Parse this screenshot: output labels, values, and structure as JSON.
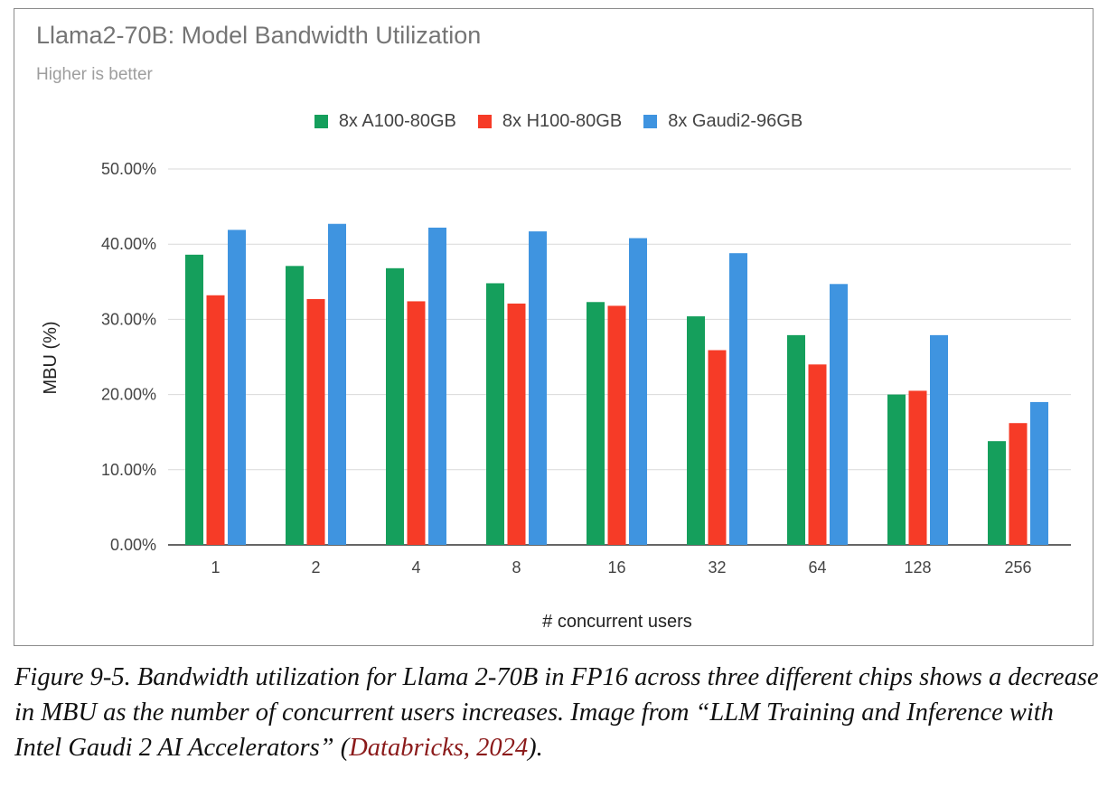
{
  "chart_data": {
    "type": "bar",
    "title": "Llama2-70B: Model Bandwidth Utilization",
    "subtitle": "Higher is better",
    "xlabel": "# concurrent users",
    "ylabel": "MBU (%)",
    "categories": [
      "1",
      "2",
      "4",
      "8",
      "16",
      "32",
      "64",
      "128",
      "256"
    ],
    "ylim": [
      0,
      50
    ],
    "yticks": [
      0,
      10,
      20,
      30,
      40,
      50
    ],
    "ytick_labels": [
      "0.00%",
      "10.00%",
      "20.00%",
      "30.00%",
      "40.00%",
      "50.00%"
    ],
    "grid": true,
    "legend_position": "top",
    "series": [
      {
        "name": "8x A100-80GB",
        "color": "#159f5c",
        "values": [
          38.6,
          37.1,
          36.8,
          34.8,
          32.3,
          30.4,
          27.9,
          20.0,
          13.8
        ]
      },
      {
        "name": "8x H100-80GB",
        "color": "#f63b27",
        "values": [
          33.2,
          32.7,
          32.4,
          32.1,
          31.8,
          25.9,
          24.0,
          20.5,
          16.2
        ]
      },
      {
        "name": "8x Gaudi2-96GB",
        "color": "#3f94e0",
        "values": [
          41.9,
          42.7,
          42.2,
          41.7,
          40.8,
          38.8,
          34.7,
          27.9,
          19.0
        ]
      }
    ]
  },
  "caption": {
    "figure_label": "Figure 9-5.",
    "text": " Bandwidth utilization for Llama 2-70B in FP16 across three different chips shows a decrease in MBU as the number of concurrent users increases. Image from “LLM Training and Inference with Intel Gaudi 2 AI Accelerators” (",
    "link_text": "Databricks, 2024",
    "end": ")."
  }
}
